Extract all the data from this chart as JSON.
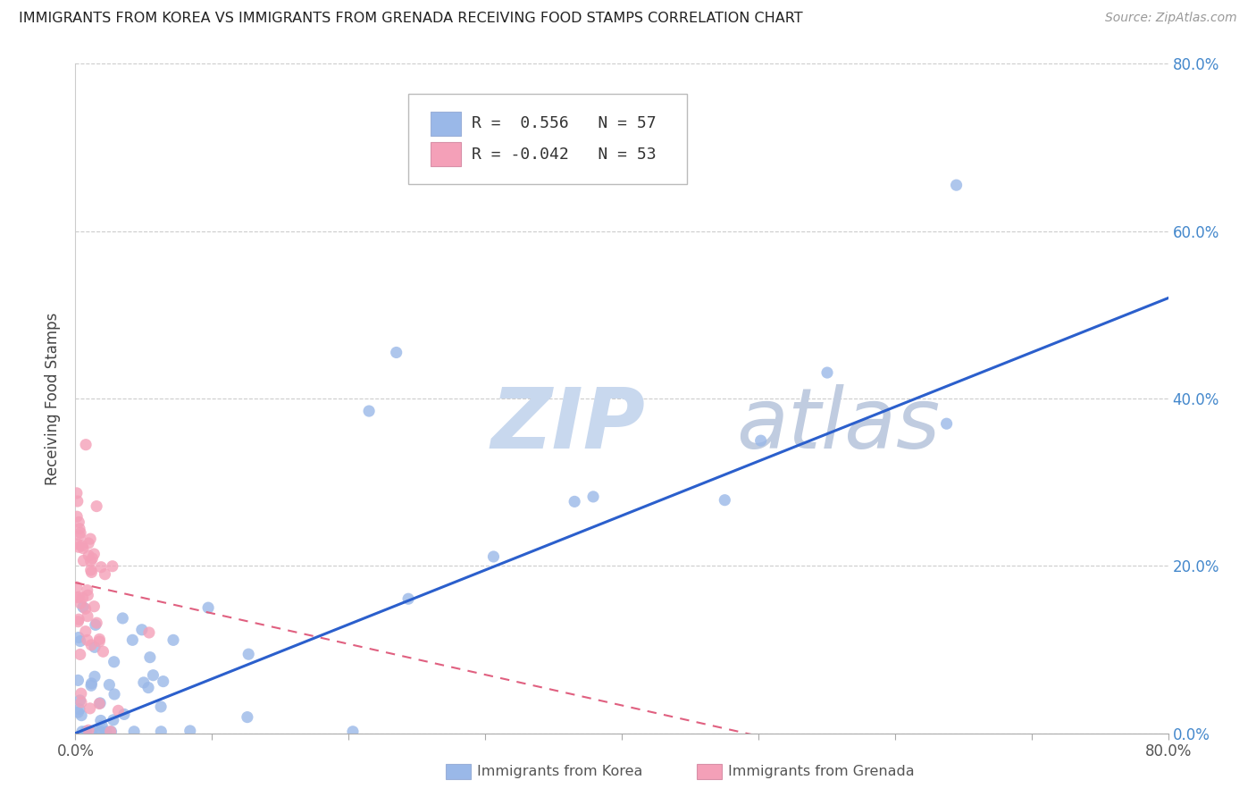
{
  "title": "IMMIGRANTS FROM KOREA VS IMMIGRANTS FROM GRENADA RECEIVING FOOD STAMPS CORRELATION CHART",
  "source": "Source: ZipAtlas.com",
  "ylabel": "Receiving Food Stamps",
  "xlabel_korea": "Immigrants from Korea",
  "xlabel_grenada": "Immigrants from Grenada",
  "korea_R": 0.556,
  "korea_N": 57,
  "grenada_R": -0.042,
  "grenada_N": 53,
  "xlim": [
    0.0,
    0.8
  ],
  "ylim": [
    0.0,
    0.8
  ],
  "yticks": [
    0.0,
    0.2,
    0.4,
    0.6,
    0.8
  ],
  "xticks": [
    0.0,
    0.1,
    0.2,
    0.3,
    0.4,
    0.5,
    0.6,
    0.7,
    0.8
  ],
  "korea_color": "#9ab8e8",
  "grenada_color": "#f4a0b8",
  "korea_line_color": "#2b5fcc",
  "grenada_line_color": "#e06080",
  "watermark_zip_color": "#c8d8ee",
  "watermark_atlas_color": "#c0cce0",
  "background": "#ffffff",
  "grid_color": "#cccccc",
  "right_tick_color": "#4488cc",
  "korea_scatter_seed": 999,
  "grenada_scatter_seed": 777
}
